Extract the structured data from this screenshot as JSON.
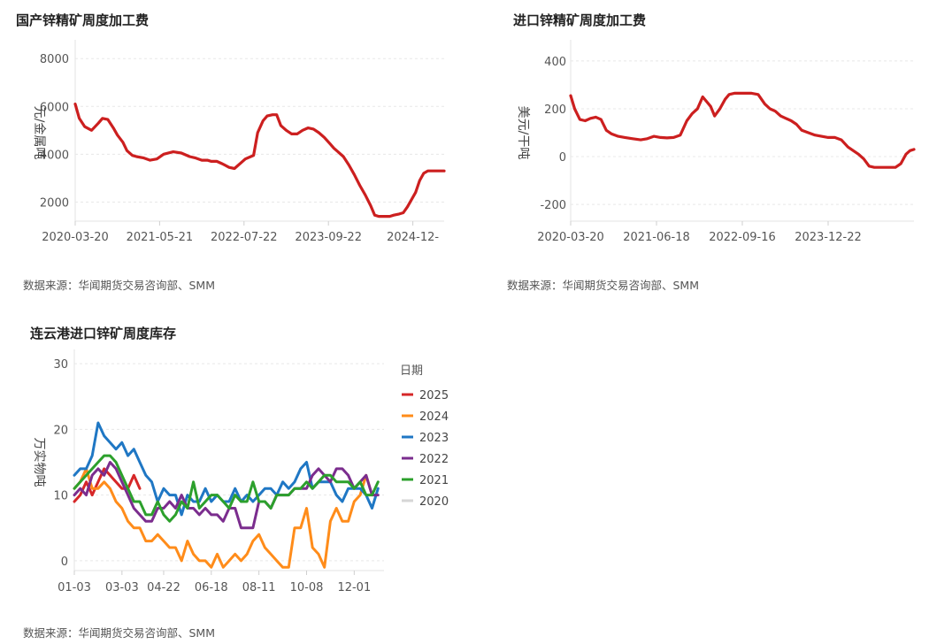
{
  "chart_data": [
    {
      "type": "line",
      "title": "国产锌精矿周度加工费",
      "ylabel": "元/金属吨",
      "xlabel": "",
      "ylim": [
        1200,
        8600
      ],
      "yticks": [
        2000,
        4000,
        6000,
        8000
      ],
      "xtick_labels": [
        "2020-03-20",
        "2021-05-21",
        "2022-07-22",
        "2023-09-22",
        "2024-12-"
      ],
      "xtick_pos": [
        0,
        62,
        124,
        186,
        248
      ],
      "xlim": [
        0,
        271
      ],
      "grid": true,
      "source": "数据来源：华闻期货交易咨询部、SMM",
      "series": [
        {
          "color": "#cc1f1f",
          "x": [
            0,
            3,
            7,
            12,
            17,
            20,
            24,
            28,
            31,
            35,
            38,
            42,
            45,
            50,
            55,
            60,
            65,
            72,
            78,
            84,
            88,
            93,
            97,
            100,
            104,
            108,
            113,
            117,
            121,
            125,
            129,
            131,
            134,
            138,
            141,
            145,
            148,
            151,
            155,
            159,
            163,
            167,
            171,
            175,
            179,
            183,
            187,
            190,
            193,
            197,
            201,
            205,
            209,
            213,
            217,
            220,
            223,
            227,
            231,
            234,
            238,
            241,
            244,
            247,
            250,
            253,
            256,
            259,
            262,
            265,
            268,
            271
          ],
          "values": [
            6100,
            5500,
            5150,
            5000,
            5300,
            5500,
            5450,
            5100,
            4800,
            4500,
            4150,
            3950,
            3900,
            3850,
            3750,
            3800,
            4000,
            4100,
            4050,
            3900,
            3850,
            3750,
            3750,
            3700,
            3700,
            3600,
            3450,
            3400,
            3600,
            3800,
            3900,
            3950,
            4900,
            5400,
            5600,
            5650,
            5650,
            5200,
            5000,
            4850,
            4850,
            5000,
            5100,
            5050,
            4900,
            4700,
            4450,
            4250,
            4100,
            3900,
            3550,
            3150,
            2700,
            2300,
            1850,
            1450,
            1400,
            1400,
            1400,
            1450,
            1500,
            1550,
            1800,
            2100,
            2400,
            2900,
            3200,
            3300,
            3300,
            3300,
            3300,
            3300
          ]
        }
      ]
    },
    {
      "type": "line",
      "title": "进口锌精矿周度加工费",
      "ylabel": "美元/干吨",
      "xlabel": "",
      "ylim": [
        -270,
        470
      ],
      "yticks": [
        -200,
        0,
        200,
        400
      ],
      "xtick_labels": [
        "2020-03-20",
        "2021-06-18",
        "2022-09-16",
        "2023-12-22"
      ],
      "xtick_pos": [
        0,
        65,
        130,
        195
      ],
      "xlim": [
        0,
        260
      ],
      "grid": true,
      "source": "数据来源：华闻期货交易咨询部、SMM",
      "series": [
        {
          "color": "#cc1f1f",
          "x": [
            0,
            3,
            7,
            11,
            15,
            19,
            23,
            27,
            31,
            36,
            41,
            47,
            53,
            58,
            63,
            68,
            73,
            78,
            83,
            88,
            92,
            96,
            100,
            103,
            106,
            109,
            113,
            117,
            120,
            124,
            128,
            132,
            137,
            142,
            147,
            151,
            155,
            159,
            163,
            167,
            171,
            175,
            180,
            185,
            190,
            195,
            200,
            205,
            210,
            214,
            218,
            222,
            226,
            230,
            234,
            238,
            242,
            246,
            250,
            254,
            257,
            260
          ],
          "values": [
            255,
            200,
            155,
            150,
            160,
            165,
            155,
            110,
            95,
            85,
            80,
            75,
            70,
            75,
            85,
            80,
            78,
            80,
            90,
            150,
            180,
            200,
            250,
            230,
            210,
            170,
            200,
            240,
            260,
            265,
            265,
            265,
            265,
            260,
            220,
            200,
            190,
            170,
            160,
            150,
            135,
            110,
            100,
            90,
            85,
            80,
            80,
            70,
            40,
            25,
            10,
            -10,
            -40,
            -45,
            -45,
            -45,
            -45,
            -45,
            -30,
            10,
            25,
            30
          ]
        }
      ]
    },
    {
      "type": "line",
      "title": "连云港进口锌矿周度库存",
      "ylabel": "万实物吨",
      "xlabel": "",
      "ylim": [
        -1.5,
        31.5
      ],
      "yticks": [
        0,
        10,
        20,
        30
      ],
      "xtick_labels": [
        "01-03",
        "03-03",
        "04-22",
        "06-18",
        "08-11",
        "10-08",
        "12-01"
      ],
      "xtick_pos": [
        0,
        8,
        15,
        23,
        31,
        39,
        47
      ],
      "xlim": [
        0,
        52
      ],
      "grid": true,
      "legend": {
        "title": "日期",
        "position": "right"
      },
      "source": "数据来源：华闻期货交易咨询部、SMM",
      "series": [
        {
          "name": "2025",
          "color": "#d62728",
          "values": [
            9,
            10,
            12,
            10,
            12,
            14,
            13,
            12,
            11,
            11,
            13,
            11
          ]
        },
        {
          "name": "2024",
          "color": "#ff8c1a",
          "values": [
            11,
            12,
            14,
            11,
            11,
            12,
            11,
            9,
            8,
            6,
            5,
            5,
            3,
            3,
            4,
            3,
            2,
            2,
            0,
            3,
            1,
            0,
            0,
            -1,
            1,
            -1,
            0,
            1,
            0,
            1,
            3,
            4,
            2,
            1,
            0,
            -1,
            -1,
            5,
            5,
            8,
            2,
            1,
            -1,
            6,
            8,
            6,
            6,
            9,
            10,
            13,
            10
          ]
        },
        {
          "name": "2023",
          "color": "#1f77c4",
          "values": [
            13,
            14,
            14,
            16,
            21,
            19,
            18,
            17,
            18,
            16,
            17,
            15,
            13,
            12,
            9,
            11,
            10,
            10,
            7,
            10,
            9,
            9,
            11,
            9,
            10,
            9,
            9,
            11,
            9,
            10,
            9,
            10,
            11,
            11,
            10,
            12,
            11,
            12,
            14,
            15,
            11,
            12,
            12,
            12,
            10,
            9,
            11,
            11,
            11,
            10,
            8,
            11
          ]
        },
        {
          "name": "2022",
          "color": "#7b2d8e",
          "values": [
            10,
            11,
            10,
            13,
            14,
            13,
            15,
            14,
            12,
            10,
            8,
            7,
            6,
            6,
            8,
            8,
            9,
            8,
            10,
            8,
            8,
            7,
            8,
            7,
            7,
            6,
            8,
            8,
            5,
            5,
            5,
            9,
            9,
            8,
            10,
            10,
            10,
            11,
            11,
            11,
            13,
            14,
            13,
            12,
            14,
            14,
            13,
            11,
            12,
            13,
            10,
            10
          ]
        },
        {
          "name": "2021",
          "color": "#2ca02c",
          "values": [
            11,
            12,
            13,
            14,
            15,
            16,
            16,
            15,
            13,
            11,
            9,
            9,
            7,
            7,
            9,
            7,
            6,
            7,
            9,
            8,
            12,
            8,
            9,
            10,
            10,
            9,
            8,
            10,
            9,
            9,
            12,
            9,
            9,
            8,
            10,
            10,
            10,
            11,
            11,
            12,
            11,
            12,
            13,
            13,
            12,
            12,
            12,
            11,
            12,
            10,
            10,
            12
          ]
        },
        {
          "name": "2020",
          "color": "#d6d6d6",
          "legend_muted": true,
          "values": []
        }
      ]
    }
  ]
}
